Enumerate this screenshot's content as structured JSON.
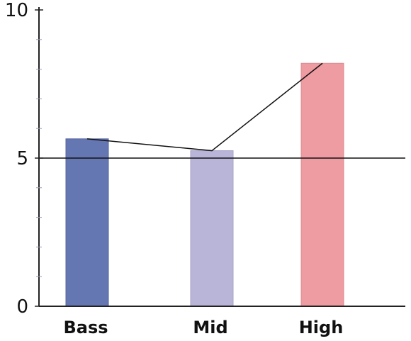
{
  "chart_data": {
    "type": "bar",
    "categories": [
      "Bass",
      "Mid",
      "High"
    ],
    "values": [
      5.65,
      5.25,
      8.2
    ],
    "bar_colors": [
      "#6577b3",
      "#b9b5d9",
      "#ef9ba2"
    ],
    "bar_edge_colors": [
      "#55649c",
      "#a6a2c6",
      "#d98c93"
    ],
    "ylim": [
      0,
      10
    ],
    "yticks": [
      0,
      5,
      10
    ],
    "ytick_labels": [
      "0",
      "5",
      "10"
    ],
    "minor_tick_step": 1,
    "reference_line": 5,
    "overlay_line": {
      "type": "line",
      "values": [
        5.65,
        5.25,
        8.2
      ],
      "color": "#111111"
    },
    "title": "",
    "xlabel": "",
    "ylabel": "",
    "grid": false,
    "legend": "none"
  }
}
